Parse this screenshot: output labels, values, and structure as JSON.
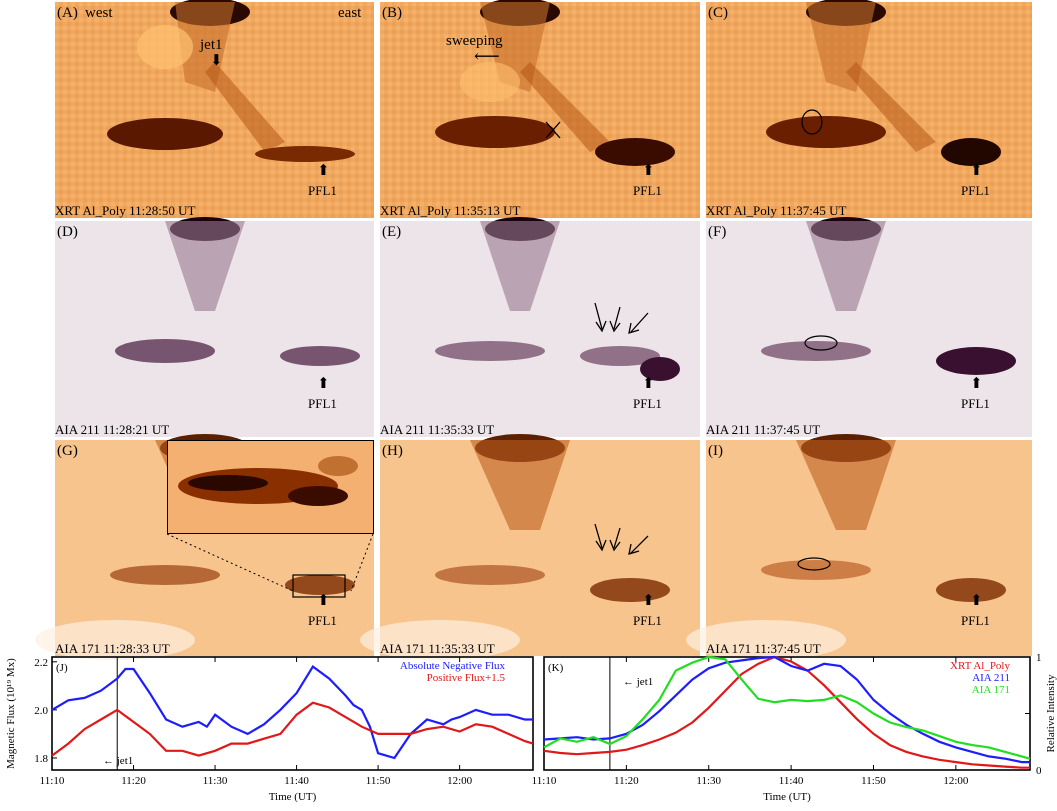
{
  "rows": [
    {
      "panels": [
        {
          "letter": "(A)",
          "corner_left": "west",
          "corner_right": "east",
          "caption": "XRT Al_Poly 11:28:50 UT",
          "pfl": "PFL1",
          "jet_label": "jet1"
        },
        {
          "letter": "(B)",
          "caption": "XRT Al_Poly 11:35:13 UT",
          "pfl": "PFL1",
          "sweep_label": "sweeping"
        },
        {
          "letter": "(C)",
          "caption": "XRT Al_Poly 11:37:45 UT",
          "pfl": "PFL1"
        }
      ]
    },
    {
      "panels": [
        {
          "letter": "(D)",
          "caption": "AIA 211 11:28:21 UT",
          "pfl": "PFL1"
        },
        {
          "letter": "(E)",
          "caption": "AIA 211 11:35:33 UT",
          "pfl": "PFL1"
        },
        {
          "letter": "(F)",
          "caption": "AIA 211 11:37:45 UT",
          "pfl": "PFL1"
        }
      ]
    },
    {
      "panels": [
        {
          "letter": "(G)",
          "caption": "AIA 171 11:28:33 UT",
          "pfl": "PFL1"
        },
        {
          "letter": "(H)",
          "caption": "AIA 171 11:35:33 UT",
          "pfl": "PFL1"
        },
        {
          "letter": "(I)",
          "caption": "AIA 171 11:37:45 UT",
          "pfl": "PFL1"
        }
      ]
    }
  ],
  "colors": {
    "xrt_bg": "#f0a85e",
    "aia211_bg": "#ece4e8",
    "aia171_bg": "#f6c48c",
    "blue": "#1d1dff",
    "red": "#e01818",
    "green": "#22dd22"
  },
  "chart_data": [
    {
      "type": "line",
      "panel": "(J)",
      "title": "",
      "xlabel": "Time (UT)",
      "ylabel": "Magnetic Flux (10^{19} Mx)",
      "x_ticks": [
        "11:10",
        "11:20",
        "11:30",
        "11:40",
        "11:50",
        "12:00"
      ],
      "y_ticks": [
        "1.8",
        "2.0",
        "2.2"
      ],
      "xlim": [
        0,
        59
      ],
      "ylim": [
        1.75,
        2.22
      ],
      "vline_x": 8,
      "annotation": "jet1",
      "series": [
        {
          "name": "Absolute Negative Flux",
          "color": "#1d1dff",
          "x": [
            0,
            2,
            4,
            6,
            8,
            9,
            10,
            12,
            14,
            16,
            18,
            19,
            20,
            22,
            24,
            26,
            28,
            30,
            32,
            34,
            36,
            37,
            38,
            39,
            40,
            42,
            44,
            46,
            48,
            49,
            50,
            52,
            54,
            56,
            58,
            59
          ],
          "y": [
            2.0,
            2.04,
            2.05,
            2.08,
            2.13,
            2.17,
            2.17,
            2.07,
            1.96,
            1.93,
            1.95,
            1.93,
            1.98,
            1.93,
            1.9,
            1.94,
            2.0,
            2.07,
            2.18,
            2.13,
            2.06,
            2.02,
            2.0,
            1.93,
            1.82,
            1.8,
            1.9,
            1.96,
            1.94,
            1.96,
            1.97,
            2.0,
            1.98,
            1.98,
            1.96,
            1.96
          ]
        },
        {
          "name": "Positive Flux+1.5",
          "color": "#e01818",
          "x": [
            0,
            2,
            4,
            6,
            8,
            10,
            12,
            14,
            16,
            18,
            20,
            22,
            24,
            26,
            28,
            30,
            32,
            34,
            36,
            38,
            40,
            42,
            44,
            46,
            48,
            50,
            52,
            54,
            56,
            58,
            59
          ],
          "y": [
            1.81,
            1.86,
            1.92,
            1.96,
            2.0,
            1.95,
            1.9,
            1.83,
            1.83,
            1.81,
            1.83,
            1.86,
            1.86,
            1.88,
            1.9,
            1.98,
            2.03,
            2.01,
            1.97,
            1.93,
            1.9,
            1.9,
            1.9,
            1.92,
            1.93,
            1.91,
            1.94,
            1.93,
            1.9,
            1.87,
            1.86
          ]
        }
      ]
    },
    {
      "type": "line",
      "panel": "(K)",
      "title": "",
      "xlabel": "Time (UT)",
      "ylabel": "Relative Intensity",
      "x_ticks": [
        "11:10",
        "11:20",
        "11:30",
        "11:40",
        "11:50",
        "12:00"
      ],
      "y_ticks": [
        "0",
        "1"
      ],
      "xlim": [
        0,
        59
      ],
      "ylim": [
        0,
        1
      ],
      "vline_x": 8,
      "annotation": "jet1",
      "series": [
        {
          "name": "XRT Al_Poly",
          "color": "#e01818",
          "x": [
            0,
            2,
            4,
            6,
            8,
            10,
            12,
            14,
            16,
            18,
            20,
            22,
            24,
            26,
            28,
            30,
            32,
            34,
            36,
            38,
            40,
            42,
            44,
            46,
            48,
            50,
            52,
            54,
            56,
            58,
            59
          ],
          "y": [
            0.17,
            0.15,
            0.14,
            0.15,
            0.16,
            0.18,
            0.22,
            0.27,
            0.33,
            0.42,
            0.55,
            0.7,
            0.85,
            0.94,
            1.0,
            0.96,
            0.88,
            0.75,
            0.6,
            0.45,
            0.32,
            0.22,
            0.16,
            0.12,
            0.09,
            0.07,
            0.05,
            0.04,
            0.03,
            0.02,
            0.02
          ]
        },
        {
          "name": "AIA 211",
          "color": "#1d1dff",
          "x": [
            0,
            2,
            4,
            6,
            8,
            10,
            12,
            14,
            16,
            18,
            20,
            22,
            24,
            26,
            28,
            30,
            32,
            34,
            36,
            38,
            40,
            42,
            44,
            46,
            48,
            50,
            52,
            54,
            56,
            58,
            59
          ],
          "y": [
            0.27,
            0.28,
            0.29,
            0.27,
            0.28,
            0.32,
            0.4,
            0.52,
            0.66,
            0.8,
            0.9,
            0.95,
            0.97,
            0.99,
            1.0,
            0.92,
            0.88,
            0.94,
            0.92,
            0.8,
            0.62,
            0.5,
            0.4,
            0.32,
            0.25,
            0.2,
            0.16,
            0.12,
            0.1,
            0.07,
            0.07
          ]
        },
        {
          "name": "AIA 171",
          "color": "#22dd22",
          "x": [
            0,
            2,
            4,
            6,
            8,
            10,
            12,
            14,
            16,
            18,
            20,
            22,
            24,
            26,
            28,
            30,
            32,
            34,
            36,
            38,
            40,
            42,
            44,
            46,
            48,
            50,
            52,
            54,
            56,
            58,
            59
          ],
          "y": [
            0.2,
            0.28,
            0.25,
            0.29,
            0.23,
            0.3,
            0.45,
            0.62,
            0.88,
            0.95,
            1.0,
            0.98,
            0.8,
            0.63,
            0.6,
            0.62,
            0.61,
            0.62,
            0.66,
            0.6,
            0.5,
            0.42,
            0.38,
            0.35,
            0.3,
            0.25,
            0.22,
            0.2,
            0.16,
            0.12,
            0.1
          ]
        }
      ]
    }
  ]
}
